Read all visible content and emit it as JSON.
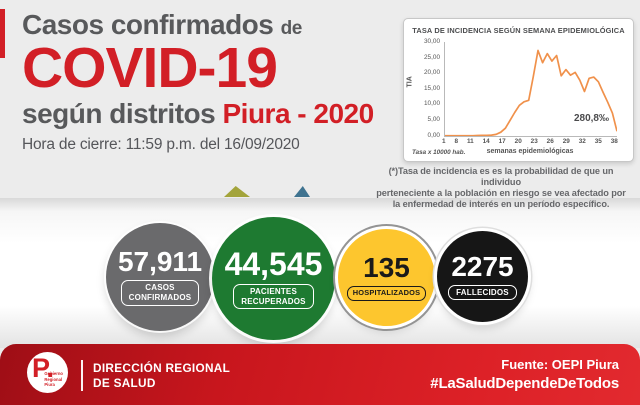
{
  "header": {
    "line1": "Casos confirmados",
    "line1_suffix": "de",
    "title": "COVID-19",
    "line3_gray": "según distritos",
    "line3_red": "Piura - 2020",
    "closing_time": "Hora de cierre: 11:59 p.m. del 16/09/2020"
  },
  "chart_data": {
    "type": "line",
    "title": "TASA DE INCIDENCIA SEGÚN SEMANA EPIDEMIOLÓGICA",
    "xlabel": "semanas epidemiológicas",
    "ylabel": "TIA",
    "note": "Tasa x 10000 hab.",
    "annotation": "280,8‰",
    "x_range": [
      1,
      38
    ],
    "x_tick_labels": [
      "1",
      "8",
      "11",
      "14",
      "17",
      "20",
      "23",
      "26",
      "29",
      "32",
      "35",
      "38"
    ],
    "y_tick_labels": [
      "30,00",
      "25,00",
      "20,00",
      "15,00",
      "10,00",
      "5,00",
      "0,00"
    ],
    "ylim": [
      0,
      30
    ],
    "grid": false,
    "legend": false,
    "line_color": "#f0914b",
    "series": [
      {
        "name": "TIA",
        "values": [
          0.1,
          0.1,
          0.1,
          0.1,
          0.1,
          0.1,
          0.1,
          0.15,
          0.2,
          0.2,
          0.3,
          0.5,
          1.2,
          2.5,
          5.0,
          7.5,
          9.8,
          10.9,
          11.4,
          19.0,
          27.3,
          23.4,
          26.3,
          23.9,
          25.7,
          19.2,
          21.2,
          19.4,
          20.3,
          17.8,
          14.2,
          18.4,
          18.8,
          17.3,
          13.9,
          10.8,
          7.3,
          1.5
        ]
      }
    ]
  },
  "chart_card": {
    "footnote_lines": [
      "(*)Tasa de incidencia es es la probabilidad de que un individuo",
      "perteneciente a la población en riesgo se vea afectado por",
      "la enfermedad de interés en un período específico."
    ]
  },
  "stats": [
    {
      "value": "57,911",
      "label_line1": "CASOS",
      "label_line2": "CONFIRMADOS",
      "color": "#6a6a6c"
    },
    {
      "value": "44,545",
      "label_line1": "PACIENTES",
      "label_line2": "RECUPERADOS",
      "color": "#1e7a31"
    },
    {
      "value": "135",
      "label_line1": "HOSPITALIZADOS",
      "color": "#fdc62e"
    },
    {
      "value": "2275",
      "label_line1": "FALLECIDOS",
      "color": "#161616"
    }
  ],
  "footer": {
    "logo_monogram": "P.",
    "logo_small_text": "Gobierno\nRegional\nPiura",
    "org_line1": "DIRECCIÓN REGIONAL",
    "org_line2": "DE SALUD",
    "source": "Fuente: OEPI Piura",
    "hashtag": "#LaSaludDependeDeTodos"
  },
  "colors": {
    "accent_red": "#d21f26",
    "title_gray": "#58595b",
    "chart_line_orange": "#f0914b",
    "circle_gray": "#6a6a6c",
    "circle_green": "#1e7a31",
    "circle_yellow": "#fdc62e",
    "circle_black": "#161616",
    "footer_red": "#c8161d",
    "background": "#ececec"
  }
}
